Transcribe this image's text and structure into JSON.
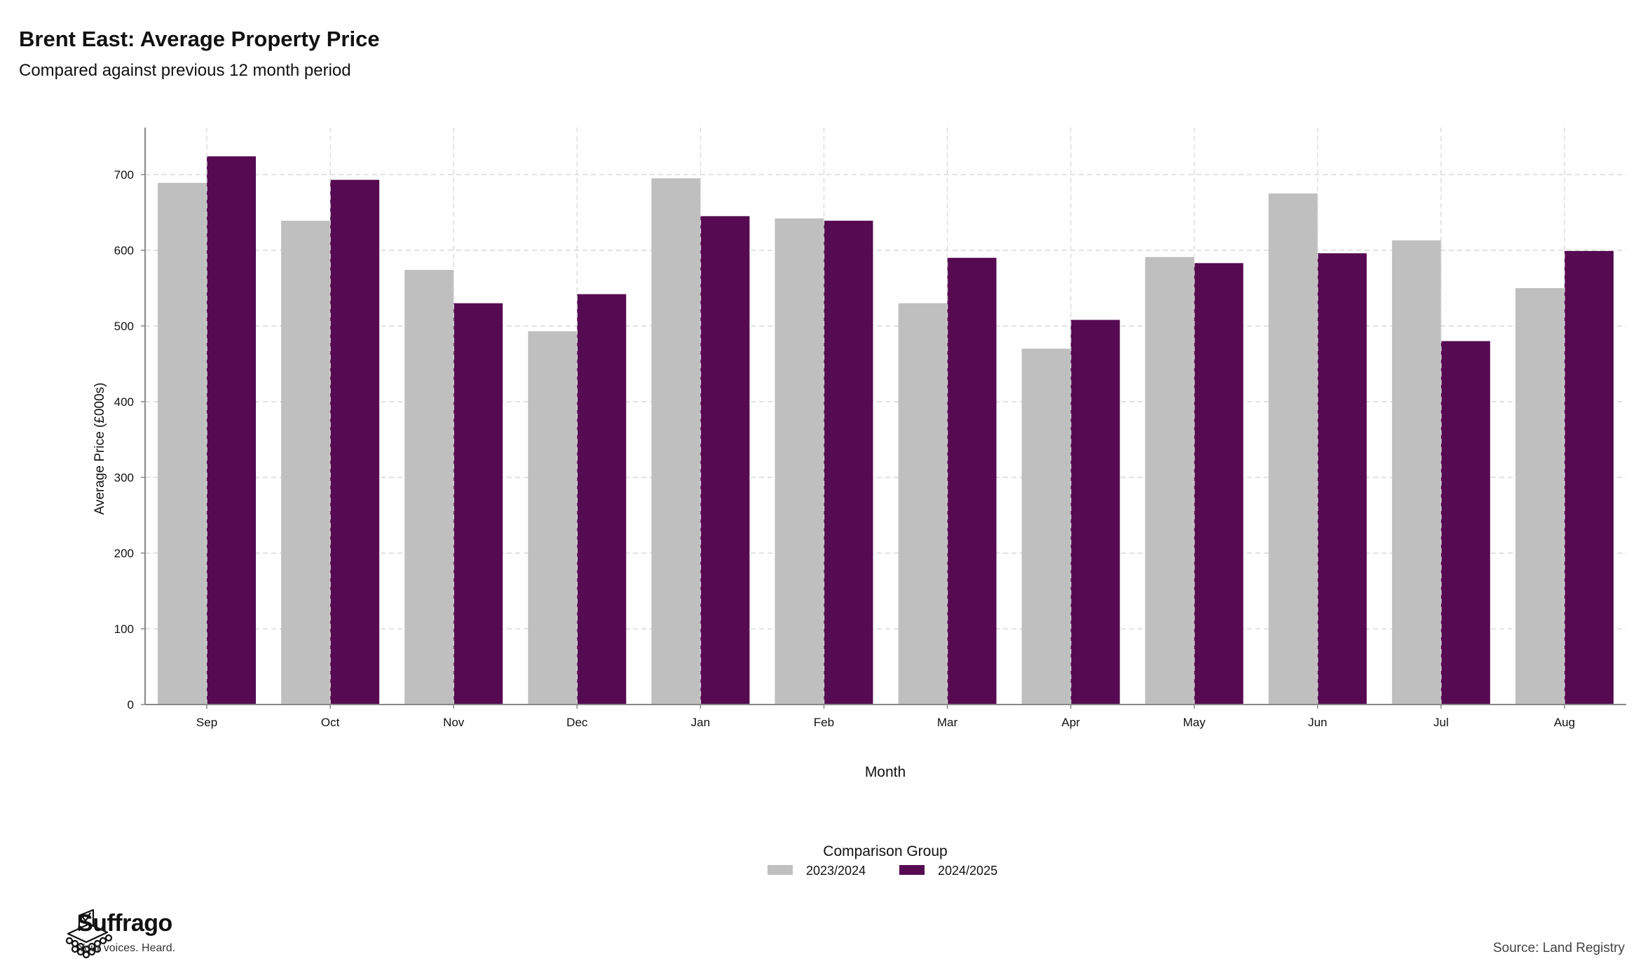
{
  "header": {
    "title": "Brent East: Average Property Price",
    "subtitle": "Compared against previous 12 month period"
  },
  "chart_data": {
    "type": "bar",
    "categories": [
      "Sep",
      "Oct",
      "Nov",
      "Dec",
      "Jan",
      "Feb",
      "Mar",
      "Apr",
      "May",
      "Jun",
      "Jul",
      "Aug"
    ],
    "series": [
      {
        "name": "2023/2024",
        "color": "#bfbfbf",
        "values": [
          689,
          639,
          574,
          493,
          695,
          642,
          530,
          470,
          591,
          675,
          613,
          550
        ]
      },
      {
        "name": "2024/2025",
        "color": "#560a52",
        "values": [
          724,
          693,
          530,
          542,
          645,
          639,
          590,
          508,
          583,
          596,
          480,
          599
        ]
      }
    ],
    "xlabel": "Month",
    "ylabel": "Average Price (£000s)",
    "ylim": [
      0,
      762
    ],
    "yticks": [
      0,
      100,
      200,
      300,
      400,
      500,
      600,
      700
    ],
    "grid": true,
    "legend": {
      "title": "Comparison Group",
      "placement": "bottom-center"
    }
  },
  "footer": {
    "brand": "Suffrago",
    "tagline": "Your voices. Heard.",
    "source": "Source: Land Registry"
  }
}
